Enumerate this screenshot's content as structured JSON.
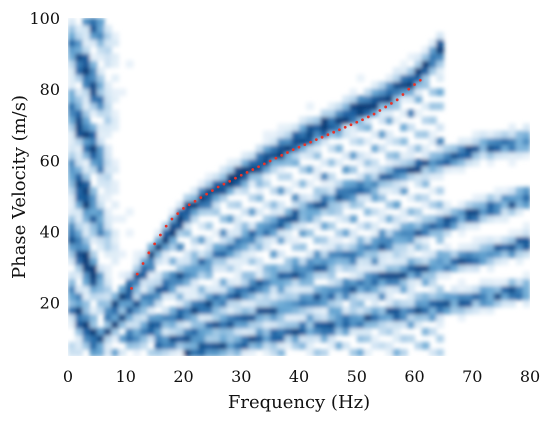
{
  "chart_data": {
    "type": "heatmap",
    "title": "",
    "xlabel": "Frequency (Hz)",
    "ylabel": "Phase Velocity (m/s)",
    "xlim": [
      0,
      80
    ],
    "ylim": [
      5,
      100
    ],
    "x_ticks": [
      0,
      10,
      20,
      30,
      40,
      50,
      60,
      70,
      80
    ],
    "y_ticks": [
      20,
      40,
      60,
      80,
      100
    ],
    "grid": false,
    "colormap": [
      "#ffffff",
      "#cfe3f3",
      "#6aa8d4",
      "#1e63a3",
      "#0b3d78"
    ],
    "picked_color": "#e8332a",
    "heatmap": {
      "x_start": 0,
      "x_end": 80,
      "x_bins": 64,
      "y_start": 5,
      "y_end": 100,
      "y_bins": 48
    },
    "dispersion_ridges": [
      {
        "points": [
          [
            6,
            15
          ],
          [
            10,
            22
          ],
          [
            15,
            34
          ],
          [
            20,
            45
          ],
          [
            25,
            51
          ],
          [
            30,
            56
          ],
          [
            35,
            61
          ],
          [
            40,
            66
          ],
          [
            45,
            70
          ],
          [
            50,
            74
          ],
          [
            55,
            78
          ],
          [
            60,
            83
          ],
          [
            65,
            92
          ]
        ]
      },
      {
        "points": [
          [
            4,
            8
          ],
          [
            10,
            17
          ],
          [
            20,
            28
          ],
          [
            30,
            37
          ],
          [
            40,
            45
          ],
          [
            50,
            52
          ],
          [
            60,
            58
          ],
          [
            70,
            63
          ],
          [
            80,
            66
          ]
        ]
      },
      {
        "points": [
          [
            10,
            10
          ],
          [
            20,
            17
          ],
          [
            30,
            23
          ],
          [
            40,
            29
          ],
          [
            50,
            34
          ],
          [
            60,
            40
          ],
          [
            70,
            45
          ],
          [
            80,
            50
          ]
        ]
      },
      {
        "points": [
          [
            15,
            8
          ],
          [
            25,
            13
          ],
          [
            35,
            18
          ],
          [
            45,
            22
          ],
          [
            55,
            27
          ],
          [
            65,
            31
          ],
          [
            75,
            35
          ],
          [
            80,
            37
          ]
        ]
      },
      {
        "points": [
          [
            20,
            6
          ],
          [
            30,
            9
          ],
          [
            40,
            12
          ],
          [
            50,
            15
          ],
          [
            60,
            18
          ],
          [
            70,
            21
          ],
          [
            80,
            24
          ]
        ]
      }
    ],
    "series": [
      {
        "type": "scatter",
        "x": [
          11,
          12,
          13,
          14,
          15,
          16,
          17,
          18,
          19,
          20,
          21,
          22,
          23,
          24,
          25,
          26,
          27,
          28,
          29,
          30,
          31,
          32,
          33,
          34,
          35,
          36,
          37,
          38,
          39,
          40,
          41,
          42,
          43,
          44,
          45,
          46,
          47,
          48,
          49,
          50,
          51,
          52,
          53,
          54,
          55,
          56,
          57,
          58,
          59,
          60,
          61
        ],
        "y": [
          24,
          28,
          31,
          34,
          36.5,
          39,
          41.5,
          43.5,
          45,
          46.5,
          47.5,
          48.5,
          49.5,
          50.5,
          51.5,
          52.5,
          53.3,
          54.1,
          55,
          55.8,
          56.6,
          57.4,
          58.2,
          59,
          59.8,
          60.6,
          61.4,
          62.2,
          63,
          63.7,
          64.4,
          65.1,
          65.8,
          66.5,
          67.2,
          67.9,
          68.6,
          69.3,
          70,
          70.7,
          71.4,
          72.2,
          73,
          74,
          75,
          76,
          77,
          78.5,
          80,
          81.3,
          82.5
        ]
      }
    ]
  }
}
